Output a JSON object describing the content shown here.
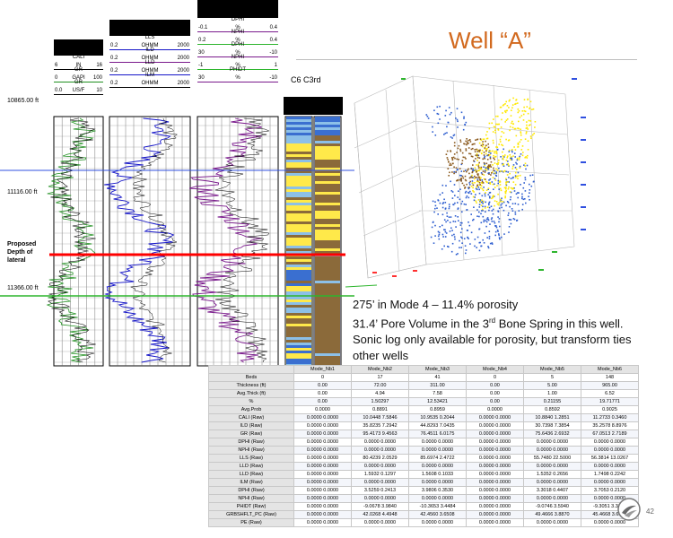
{
  "slide_title": "Well “A”",
  "bullets": [
    "275’ in Mode 4 – 11.4% porosity",
    "31.4’ Pore Volume in the 3rd Bone Spring in this well.",
    "Sonic log only available for porosity, but transform ties other wells"
  ],
  "bullet2_parts": {
    "pre": "31.4’ Pore Volume in the 3",
    "sup": "rd",
    "post": " Bone Spring in this well."
  },
  "depths": {
    "top": "10865.00 ft",
    "mid": "11116.00 ft",
    "low": "11366.00 ft"
  },
  "proposed_label": [
    "Proposed",
    "Depth of",
    "lateral"
  ],
  "track_labels": "C6  C3rd",
  "page_number": "42",
  "track1_header": [
    {
      "name": "CALI",
      "min": "6",
      "unit": "IN",
      "max": "16"
    },
    {
      "name": "GR",
      "min": "0",
      "unit": "GAPI",
      "max": "100"
    },
    {
      "name": "GR",
      "min": "0.0",
      "unit": "US/F",
      "max": "10"
    }
  ],
  "track2_header": [
    {
      "name": "LLS",
      "min": "0.2",
      "unit": "OHMM",
      "max": "2000"
    },
    {
      "name": "ILD",
      "min": "0.2",
      "unit": "OHMM",
      "max": "2000"
    },
    {
      "name": "LLD",
      "min": "0.2",
      "unit": "OHMM",
      "max": "2000"
    },
    {
      "name": "ILM",
      "min": "0.2",
      "unit": "OHMM",
      "max": "2000"
    }
  ],
  "track3_header": [
    {
      "name": "DPHI",
      "min": "-0.1",
      "unit": "%",
      "max": "0.4"
    },
    {
      "name": "NPHI",
      "min": "0.2",
      "unit": "%",
      "max": "0.4"
    },
    {
      "name": "DPHI",
      "min": "30",
      "unit": "%",
      "max": "-10"
    },
    {
      "name": "NPHI",
      "min": "-1",
      "unit": "%",
      "max": "1"
    },
    {
      "name": "PHIDT",
      "min": "30",
      "unit": "%",
      "max": "-10"
    }
  ],
  "table": {
    "columns": [
      "",
      "Mode_Nb1",
      "Mode_Nb2",
      "Mode_Nb3",
      "Mode_Nb4",
      "Mode_Nb5",
      "Mode_Nb6"
    ],
    "rows": [
      [
        "Beds",
        "0",
        "17",
        "41",
        "0",
        "5",
        "148"
      ],
      [
        "Thickness (ft)",
        "0.00",
        "72.00",
        "311.00",
        "0.00",
        "5.00",
        "965.00"
      ],
      [
        "Avg.Thick (ft)",
        "0.00",
        "4.94",
        "7.58",
        "0.00",
        "1.00",
        "6.52"
      ],
      [
        "%",
        "0.00",
        "1.50297",
        "12.53421",
        "0.00",
        "0.21155",
        "19.71771"
      ],
      [
        "Avg.Prob",
        "0.0000",
        "0.8891",
        "0.8959",
        "0.0000",
        "0.8592",
        "0.9025"
      ],
      [
        "CALI (Raw)",
        "0.0000  0.0000",
        "10.0448  7.5846",
        "10.9535  0.2044",
        "0.0000  0.0000",
        "10.8840  1.2851",
        "11.2733  0.3460"
      ],
      [
        "ILD (Raw)",
        "0.0000  0.0000",
        "35.8235  7.2942",
        "44.8293  7.0435",
        "0.0000  0.0000",
        "30.7398  7.3854",
        "35.2578  8.8976"
      ],
      [
        "GR (Raw)",
        "0.0000  0.0000",
        "95.4173  9.4563",
        "76.4511  6.0175",
        "0.0000  0.0000",
        "75.6436  2.6932",
        "67.0513  2.7189"
      ],
      [
        "DPHI (Raw)",
        "0.0000  0.0000",
        "0.0000  0.0000",
        "0.0000  0.0000",
        "0.0000  0.0000",
        "0.0000  0.0000",
        "0.0000  0.0000"
      ],
      [
        "NPHI (Raw)",
        "0.0000  0.0000",
        "0.0000  0.0000",
        "0.0000  0.0000",
        "0.0000  0.0000",
        "0.0000  0.0000",
        "0.0000  0.0000"
      ],
      [
        "LLS (Raw)",
        "0.0000  0.0000",
        "80.4239  2.0529",
        "85.6974  2.4722",
        "0.0000  0.0000",
        "55.7480  22.5000",
        "56.3814  13.0267"
      ],
      [
        "LLD (Raw)",
        "0.0000  0.0000",
        "0.0000  0.0000",
        "0.0000  0.0000",
        "0.0000  0.0000",
        "0.0000  0.0000",
        "0.0000  0.0000"
      ],
      [
        "LLD (Raw)",
        "0.0000  0.0000",
        "1.5932  0.1297",
        "1.5608  0.1033",
        "0.0000  0.0000",
        "1.5352  0.2656",
        "1.7498  0.2242"
      ],
      [
        "ILM (Raw)",
        "0.0000  0.0000",
        "0.0000  0.0000",
        "0.0000  0.0000",
        "0.0000  0.0000",
        "0.0000  0.0000",
        "0.0000  0.0000"
      ],
      [
        "DPHI (Raw)",
        "0.0000  0.0000",
        "3.5259  0.2413",
        "3.9806  0.3530",
        "0.0000  0.0000",
        "3.3018  0.4407",
        "3.7053  0.2120"
      ],
      [
        "NPHI (Raw)",
        "0.0000  0.0000",
        "0.0000  0.0000",
        "0.0000  0.0000",
        "0.0000  0.0000",
        "0.0000  0.0000",
        "0.0000  0.0000"
      ],
      [
        "PHIDT (Raw)",
        "0.0000  0.0000",
        "-9.0678  3.9840",
        "-10.3653  3.4484",
        "0.0000  0.0000",
        "-9.0746  3.5940",
        "-9.3051  3.3105"
      ],
      [
        "GRBSHFLT_PC (Raw)",
        "0.0000  0.0000",
        "42.0268  4.4948",
        "42.4560  3.6508",
        "0.0000  0.0000",
        "49.4666  3.8870",
        "45.4668  3.6567"
      ],
      [
        "PE (Raw)",
        "0.0000  0.0000",
        "0.0000  0.0000",
        "0.0000  0.0000",
        "0.0000  0.0000",
        "0.0000  0.0000",
        "0.0000  0.0000"
      ]
    ]
  },
  "colors": {
    "title": "#d2691e",
    "gr_curve": "#1f8f1f",
    "res_curve": "#1414c8",
    "por_curve": "#7a1a8c",
    "red_line": "#ff0000",
    "green_line": "#2db52d",
    "blue_line": "#3050e0"
  }
}
